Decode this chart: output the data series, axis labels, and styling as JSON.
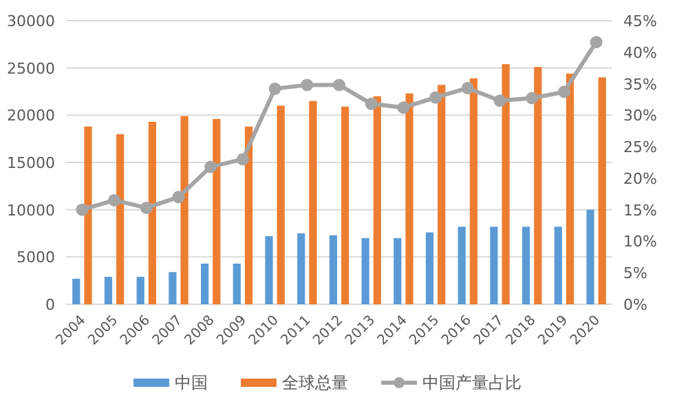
{
  "chart_data": {
    "type": "bar",
    "categories": [
      "2004",
      "2005",
      "2006",
      "2007",
      "2008",
      "2009",
      "2010",
      "2011",
      "2012",
      "2013",
      "2014",
      "2015",
      "2016",
      "2017",
      "2018",
      "2019",
      "2020"
    ],
    "series": [
      {
        "name": "中国",
        "color": "#5b9bd5",
        "values": [
          2700,
          2900,
          2900,
          3400,
          4300,
          4300,
          7200,
          7500,
          7300,
          7000,
          7000,
          7600,
          8200,
          8200,
          8200,
          8200,
          10000
        ]
      },
      {
        "name": "全球总量",
        "color": "#ed7d31",
        "values": [
          18800,
          18000,
          19300,
          19900,
          19600,
          18800,
          21000,
          21500,
          20900,
          22000,
          22300,
          23200,
          23900,
          25400,
          25100,
          24400,
          24000
        ]
      },
      {
        "name": "中国产量占比",
        "type": "line",
        "axis": "y2",
        "marker": "circle",
        "color": "#a5a5a5",
        "values": [
          15,
          16.5,
          15.3,
          17,
          21.8,
          23,
          34.2,
          34.8,
          34.8,
          31.8,
          31.2,
          32.8,
          34.3,
          32.3,
          32.7,
          33.7,
          41.6
        ]
      }
    ],
    "ylim": [
      0,
      30000
    ],
    "yticks": [
      0,
      5000,
      10000,
      15000,
      20000,
      25000,
      30000
    ],
    "y2lim": [
      0,
      45
    ],
    "y2ticks": [
      {
        "value": 0,
        "label": "0%"
      },
      {
        "value": 5,
        "label": "5%"
      },
      {
        "value": 10,
        "label": "10%"
      },
      {
        "value": 15,
        "label": "15%"
      },
      {
        "value": 20,
        "label": "20%"
      },
      {
        "value": 25,
        "label": "25%"
      },
      {
        "value": 30,
        "label": "30%"
      },
      {
        "value": 35,
        "label": "35%"
      },
      {
        "value": 40,
        "label": "40%"
      },
      {
        "value": 45,
        "label": "45%"
      }
    ],
    "grid": "y",
    "legend": "bottom"
  }
}
